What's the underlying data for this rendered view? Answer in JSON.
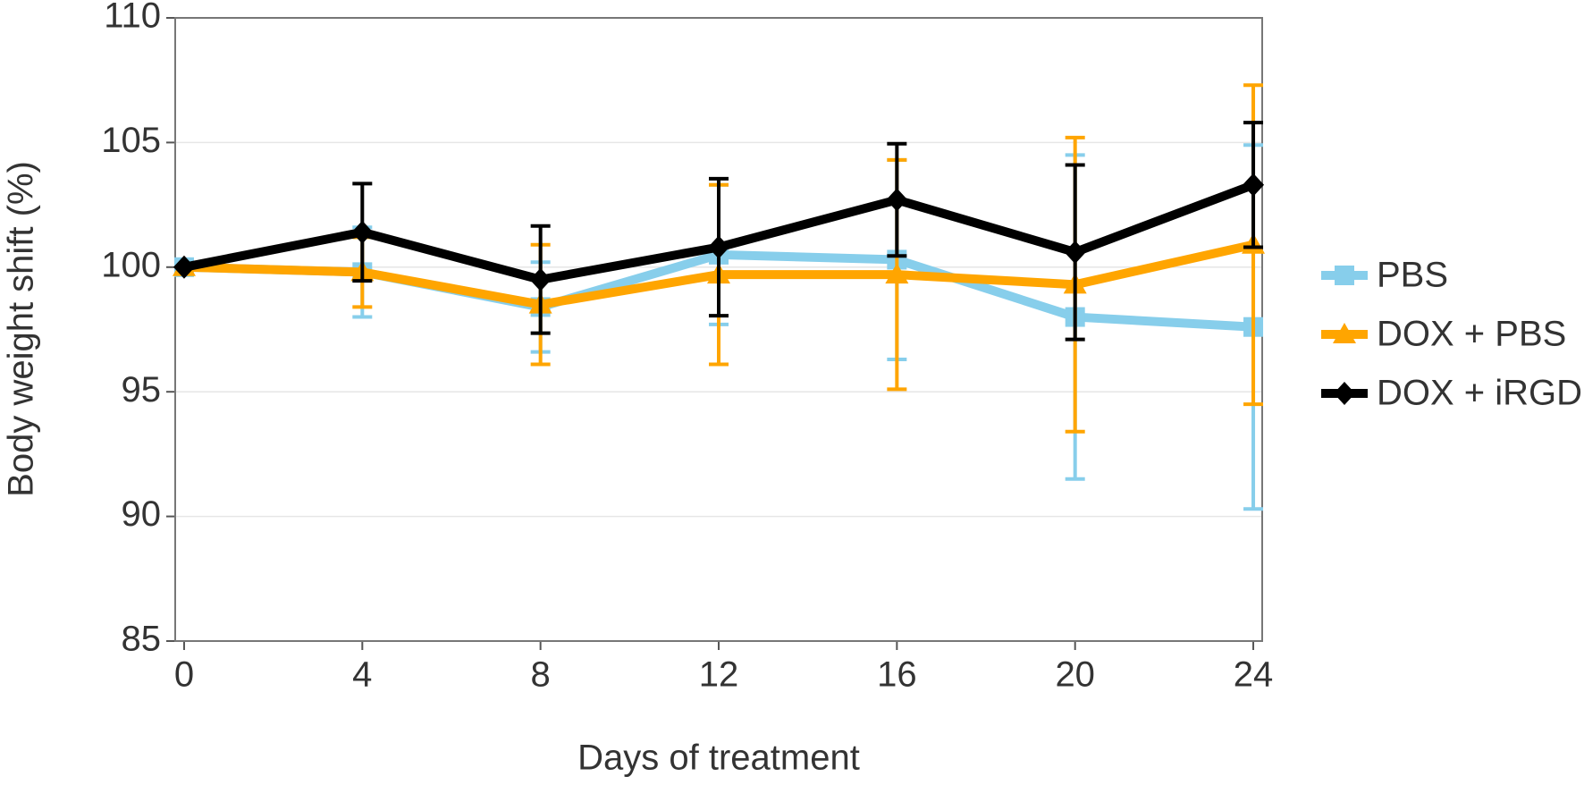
{
  "chart_data": {
    "type": "line",
    "x_label": "Days of treatment",
    "y_label": "Body weight shift (%)",
    "x": [
      0,
      4,
      8,
      12,
      16,
      20,
      24
    ],
    "series": [
      {
        "name": "PBS",
        "color": "#87ceeb",
        "marker": "square",
        "values": [
          100,
          99.8,
          98.4,
          100.5,
          100.3,
          98.0,
          97.6
        ],
        "errors": [
          0,
          1.8,
          1.8,
          2.8,
          4.0,
          6.5,
          7.3
        ]
      },
      {
        "name": "DOX + PBS",
        "color": "#ffa500",
        "marker": "triangle",
        "values": [
          100,
          99.8,
          98.5,
          99.7,
          99.7,
          99.3,
          100.9
        ],
        "errors": [
          0,
          1.4,
          2.4,
          3.6,
          4.6,
          5.9,
          6.4
        ]
      },
      {
        "name": "DOX + iRGD",
        "color": "#000000",
        "marker": "diamond",
        "values": [
          100,
          101.4,
          99.5,
          100.8,
          102.7,
          100.6,
          103.3
        ],
        "errors": [
          0,
          1.95,
          2.15,
          2.75,
          2.25,
          3.5,
          2.5
        ]
      }
    ],
    "xlim": [
      -0.2,
      24.2
    ],
    "ylim": [
      85,
      110
    ],
    "xticks": [
      0,
      4,
      8,
      12,
      16,
      20,
      24
    ],
    "yticks": [
      85,
      90,
      95,
      100,
      105,
      110
    ],
    "grid": true,
    "legend": "right"
  }
}
